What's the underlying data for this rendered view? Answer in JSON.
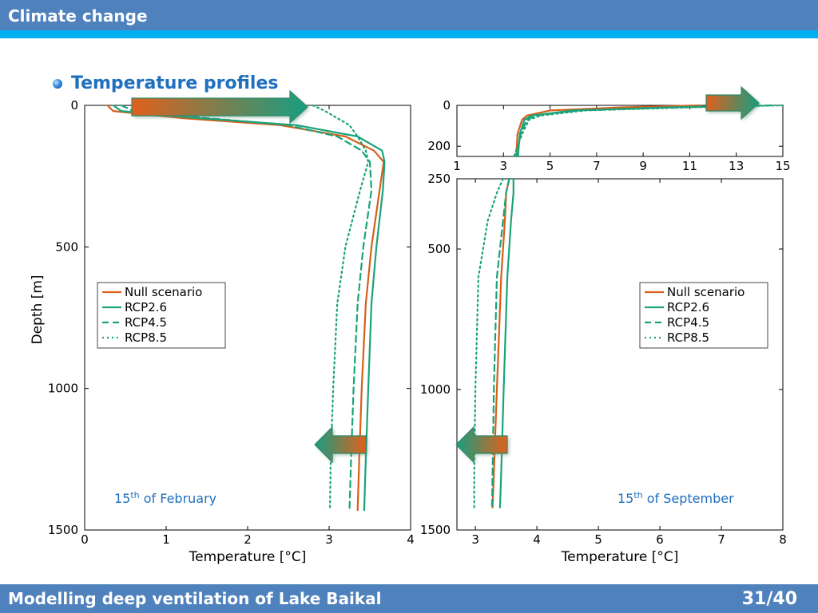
{
  "header": {
    "title": "Climate change"
  },
  "section": {
    "title": "Temperature profiles"
  },
  "footer": {
    "title": "Modelling deep ventilation of Lake Baikal",
    "page": "31/40"
  },
  "colors": {
    "header": "#4f81bd",
    "stripe": "#00b0f0",
    "null": "#d65f1c",
    "rcp": "#1aa37a",
    "arrow_from": "#e0601c",
    "arrow_to": "#169e82"
  },
  "chart_data": [
    {
      "type": "line",
      "date_label": {
        "day": "15",
        "suffix": "th",
        "rest": " of February"
      },
      "xlabel": "Temperature [°C]",
      "ylabel": "Depth [m]",
      "xlim": [
        0,
        4
      ],
      "ylim": [
        1500,
        0
      ],
      "xticks": [
        0,
        1,
        2,
        3,
        4
      ],
      "yticks": [
        0,
        500,
        1000,
        1500
      ],
      "legend_position": "center-left",
      "series": [
        {
          "name": "Null scenario",
          "style": "solid",
          "color": "null",
          "x": [
            0.28,
            0.35,
            1.2,
            2.4,
            3.2,
            3.55,
            3.67,
            3.62,
            3.52,
            3.45,
            3.4,
            3.37,
            3.35
          ],
          "y": [
            0,
            20,
            45,
            70,
            110,
            160,
            200,
            300,
            500,
            700,
            1000,
            1250,
            1430
          ]
        },
        {
          "name": "RCP2.6",
          "style": "solid",
          "color": "rcp",
          "x": [
            0.35,
            0.45,
            1.4,
            2.6,
            3.35,
            3.65,
            3.68,
            3.66,
            3.58,
            3.52,
            3.48,
            3.45,
            3.43
          ],
          "y": [
            0,
            20,
            45,
            70,
            110,
            160,
            200,
            300,
            500,
            700,
            1000,
            1250,
            1430
          ]
        },
        {
          "name": "RCP4.5",
          "style": "dashed",
          "color": "rcp",
          "x": [
            0.45,
            0.6,
            1.5,
            2.5,
            3.1,
            3.4,
            3.5,
            3.52,
            3.42,
            3.35,
            3.3,
            3.27,
            3.25
          ],
          "y": [
            0,
            20,
            45,
            70,
            110,
            160,
            200,
            300,
            500,
            700,
            1000,
            1250,
            1430
          ]
        },
        {
          "name": "RCP8.5",
          "style": "dotted",
          "color": "rcp",
          "x": [
            2.8,
            2.95,
            3.1,
            3.25,
            3.35,
            3.45,
            3.48,
            3.38,
            3.2,
            3.1,
            3.05,
            3.02,
            3.01
          ],
          "y": [
            0,
            20,
            45,
            70,
            110,
            160,
            200,
            300,
            500,
            700,
            1000,
            1250,
            1430
          ]
        }
      ]
    },
    {
      "type": "line",
      "date_label": {
        "day": "15",
        "suffix": "th",
        "rest": " of September"
      },
      "xlabel": "Temperature [°C]",
      "ylabel": "",
      "legend_position": "center-right",
      "panels": [
        {
          "name": "top",
          "xlim": [
            1,
            15
          ],
          "ylim": [
            250,
            0
          ],
          "xticks": [
            1,
            3,
            5,
            7,
            9,
            11,
            13,
            15
          ],
          "yticks": [
            0,
            200
          ]
        },
        {
          "name": "bottom",
          "xlim": [
            2.7,
            8
          ],
          "ylim": [
            1500,
            250
          ],
          "xticks": [
            3,
            4,
            5,
            6,
            7,
            8
          ],
          "yticks": [
            250,
            500,
            1000,
            1500
          ]
        }
      ],
      "series": [
        {
          "name": "Null scenario",
          "style": "solid",
          "color": "null",
          "x": [
            11.5,
            8,
            5,
            4,
            3.8,
            3.6,
            3.55,
            3.5,
            3.48,
            3.42,
            3.35,
            3.3,
            3.28
          ],
          "y": [
            0,
            10,
            25,
            50,
            70,
            140,
            250,
            300,
            400,
            600,
            1000,
            1300,
            1420
          ]
        },
        {
          "name": "RCP2.6",
          "style": "solid",
          "color": "rcp",
          "x": [
            14,
            10,
            6,
            4.2,
            3.9,
            3.7,
            3.62,
            3.62,
            3.58,
            3.52,
            3.46,
            3.42,
            3.4
          ],
          "y": [
            0,
            10,
            25,
            50,
            70,
            140,
            250,
            300,
            400,
            600,
            1000,
            1300,
            1420
          ]
        },
        {
          "name": "RCP4.5",
          "style": "dashed",
          "color": "rcp",
          "x": [
            14.5,
            10.5,
            6.2,
            4.4,
            4.0,
            3.75,
            3.55,
            3.5,
            3.45,
            3.35,
            3.3,
            3.28,
            3.27
          ],
          "y": [
            0,
            10,
            25,
            50,
            70,
            140,
            250,
            300,
            400,
            600,
            1000,
            1300,
            1420
          ]
        },
        {
          "name": "RCP8.5",
          "style": "dotted",
          "color": "rcp",
          "x": [
            15,
            11,
            6.5,
            4.6,
            4.1,
            3.8,
            3.45,
            3.35,
            3.2,
            3.05,
            3.0,
            2.98,
            2.98
          ],
          "y": [
            0,
            10,
            25,
            50,
            70,
            140,
            250,
            300,
            400,
            600,
            1000,
            1300,
            1420
          ]
        }
      ]
    }
  ]
}
